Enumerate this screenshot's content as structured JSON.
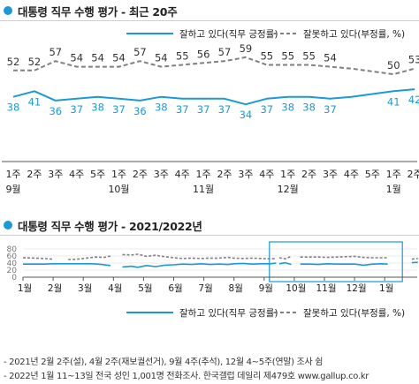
{
  "header1": {
    "title": "대통령 직무 수행 평가 - 최근 20주"
  },
  "header2": {
    "title": "대통령 직무 수행 평가 - 2021/2022년"
  },
  "colors": {
    "approve": "#1a9ad6",
    "disapprove": "#808080",
    "accent": "#1a9ad6"
  },
  "chart_data": [
    {
      "type": "line",
      "legend": [
        "잘하고 있다(직무 긍정률)",
        "잘못하고 있다(부정률, %)"
      ],
      "legend_position": "top-right",
      "categories": [
        "1주",
        "2주",
        "3주",
        "4주",
        "5주",
        "1주",
        "2주",
        "3주",
        "4주",
        "1주",
        "2주",
        "3주",
        "4주",
        "1주",
        "2주",
        "3주",
        "4주",
        "5주",
        "1주",
        "2주"
      ],
      "months": [
        {
          "label": "9월",
          "index": 0
        },
        {
          "label": "10월",
          "index": 5
        },
        {
          "label": "11월",
          "index": 9
        },
        {
          "label": "12월",
          "index": 13
        },
        {
          "label": "1월",
          "index": 18
        }
      ],
      "series": [
        {
          "name": "잘하고 있다(직무 긍정률)",
          "style": "solid",
          "color": "#1a9ad6",
          "values": [
            38,
            41,
            36,
            37,
            38,
            37,
            36,
            38,
            37,
            37,
            37,
            34,
            37,
            38,
            38,
            37,
            null,
            null,
            41,
            42
          ],
          "curve": [
            38,
            41,
            36,
            37,
            38,
            37,
            36,
            38,
            37,
            37,
            37,
            34,
            37,
            38,
            38,
            37,
            38,
            39.5,
            41,
            42
          ]
        },
        {
          "name": "잘못하고 있다(부정률, %)",
          "style": "dashed",
          "color": "#808080",
          "values": [
            52,
            52,
            57,
            54,
            54,
            54,
            57,
            54,
            55,
            56,
            57,
            59,
            55,
            55,
            55,
            54,
            null,
            null,
            50,
            53
          ],
          "curve": [
            52,
            52,
            57,
            54,
            54,
            54,
            57,
            54,
            55,
            56,
            57,
            59,
            55,
            55,
            55,
            54,
            53,
            51.5,
            50,
            53
          ]
        }
      ],
      "ylim": [
        20,
        70
      ],
      "grid": false
    },
    {
      "type": "line",
      "legend": [
        "잘하고 있다(직무 긍정률)",
        "잘못하고 있다(부정률, %)"
      ],
      "legend_position": "bottom",
      "yticks": [
        0,
        20,
        40,
        60,
        80
      ],
      "ylim": [
        0,
        80
      ],
      "x_labels": [
        "1월",
        "2월",
        "3월",
        "4월",
        "5월",
        "6월",
        "7월",
        "8월",
        "9월",
        "10월",
        "11월",
        "12월",
        "1월"
      ],
      "highlight_box": {
        "from_month": 9,
        "to_month": 13
      },
      "series": [
        {
          "name": "잘하고 있다(직무 긍정률)",
          "style": "solid",
          "color": "#1a9ad6",
          "segments": [
            [
              [
                1,
                37
              ],
              [
                1.4,
                37
              ],
              [
                1.7,
                37
              ],
              [
                2,
                38
              ],
              [
                2.4,
                38
              ],
              [
                2.7,
                38
              ],
              [
                3,
                38
              ],
              [
                3.3,
                38
              ],
              [
                3.6,
                36
              ],
              [
                3.9,
                33
              ]
            ],
            [
              [
                4.3,
                29
              ],
              [
                4.6,
                31
              ],
              [
                4.8,
                28
              ],
              [
                5.1,
                33
              ],
              [
                5.4,
                30
              ],
              [
                5.7,
                34
              ],
              [
                6,
                35
              ],
              [
                6.3,
                37
              ],
              [
                6.6,
                36
              ],
              [
                6.9,
                38
              ],
              [
                7.2,
                36
              ],
              [
                7.5,
                37
              ],
              [
                7.8,
                36
              ],
              [
                8,
                38
              ],
              [
                8.3,
                39
              ],
              [
                8.6,
                37
              ],
              [
                8.9,
                38
              ],
              [
                9.2,
                38
              ],
              [
                9.4,
                40
              ]
            ],
            [
              [
                9.5,
                38
              ],
              [
                9.7,
                41
              ],
              [
                9.9,
                36
              ]
            ],
            [
              [
                10.2,
                37
              ],
              [
                10.5,
                37
              ],
              [
                10.8,
                36
              ],
              [
                11.1,
                38
              ],
              [
                11.4,
                37
              ],
              [
                11.7,
                37
              ],
              [
                12,
                37
              ],
              [
                12.3,
                34
              ],
              [
                12.6,
                37
              ],
              [
                12.9,
                38
              ],
              [
                13.1,
                37
              ]
            ],
            [
              [
                13.9,
                41
              ],
              [
                14.1,
                42
              ]
            ]
          ]
        },
        {
          "name": "잘못하고 있다(부정률, %)",
          "style": "dashed",
          "color": "#808080",
          "segments": [
            [
              [
                1,
                55
              ],
              [
                1.4,
                54
              ],
              [
                1.7,
                53
              ],
              [
                2,
                51
              ]
            ],
            [
              [
                2.5,
                50
              ],
              [
                2.8,
                51
              ],
              [
                3.1,
                54
              ],
              [
                3.4,
                57
              ],
              [
                3.7,
                56
              ],
              [
                3.9,
                60
              ]
            ],
            [
              [
                4.3,
                64
              ],
              [
                4.6,
                63
              ],
              [
                4.8,
                65
              ],
              [
                5.1,
                59
              ],
              [
                5.4,
                62
              ],
              [
                5.7,
                58
              ],
              [
                6,
                55
              ],
              [
                6.3,
                53
              ],
              [
                6.6,
                54
              ],
              [
                6.9,
                53
              ],
              [
                7.2,
                54
              ],
              [
                7.5,
                54
              ],
              [
                7.8,
                56
              ],
              [
                8,
                54
              ],
              [
                8.3,
                53
              ],
              [
                8.6,
                54
              ],
              [
                8.9,
                53
              ],
              [
                9.2,
                52
              ],
              [
                9.4,
                53
              ]
            ],
            [
              [
                9.5,
                55
              ],
              [
                9.7,
                52
              ],
              [
                9.9,
                59
              ]
            ],
            [
              [
                10.2,
                57
              ],
              [
                10.5,
                57
              ],
              [
                10.8,
                57
              ],
              [
                11.1,
                56
              ],
              [
                11.4,
                57
              ],
              [
                11.7,
                58
              ],
              [
                12,
                59
              ],
              [
                12.3,
                56
              ],
              [
                12.6,
                55
              ],
              [
                12.9,
                55
              ],
              [
                13.1,
                55
              ]
            ],
            [
              [
                13.9,
                51
              ],
              [
                14.1,
                53
              ]
            ]
          ]
        }
      ]
    }
  ],
  "notes": [
    "- 2021년 2월 2주(설), 4월 2주(재보궐선거), 9월 4주(추석), 12월 4~5주(연말) 조사 쉼",
    "- 2022년 1월 11~13일 전국 성인 1,001명 전화조사. 한국갤럽 데일리 제479호 www.gallup.co.kr"
  ]
}
